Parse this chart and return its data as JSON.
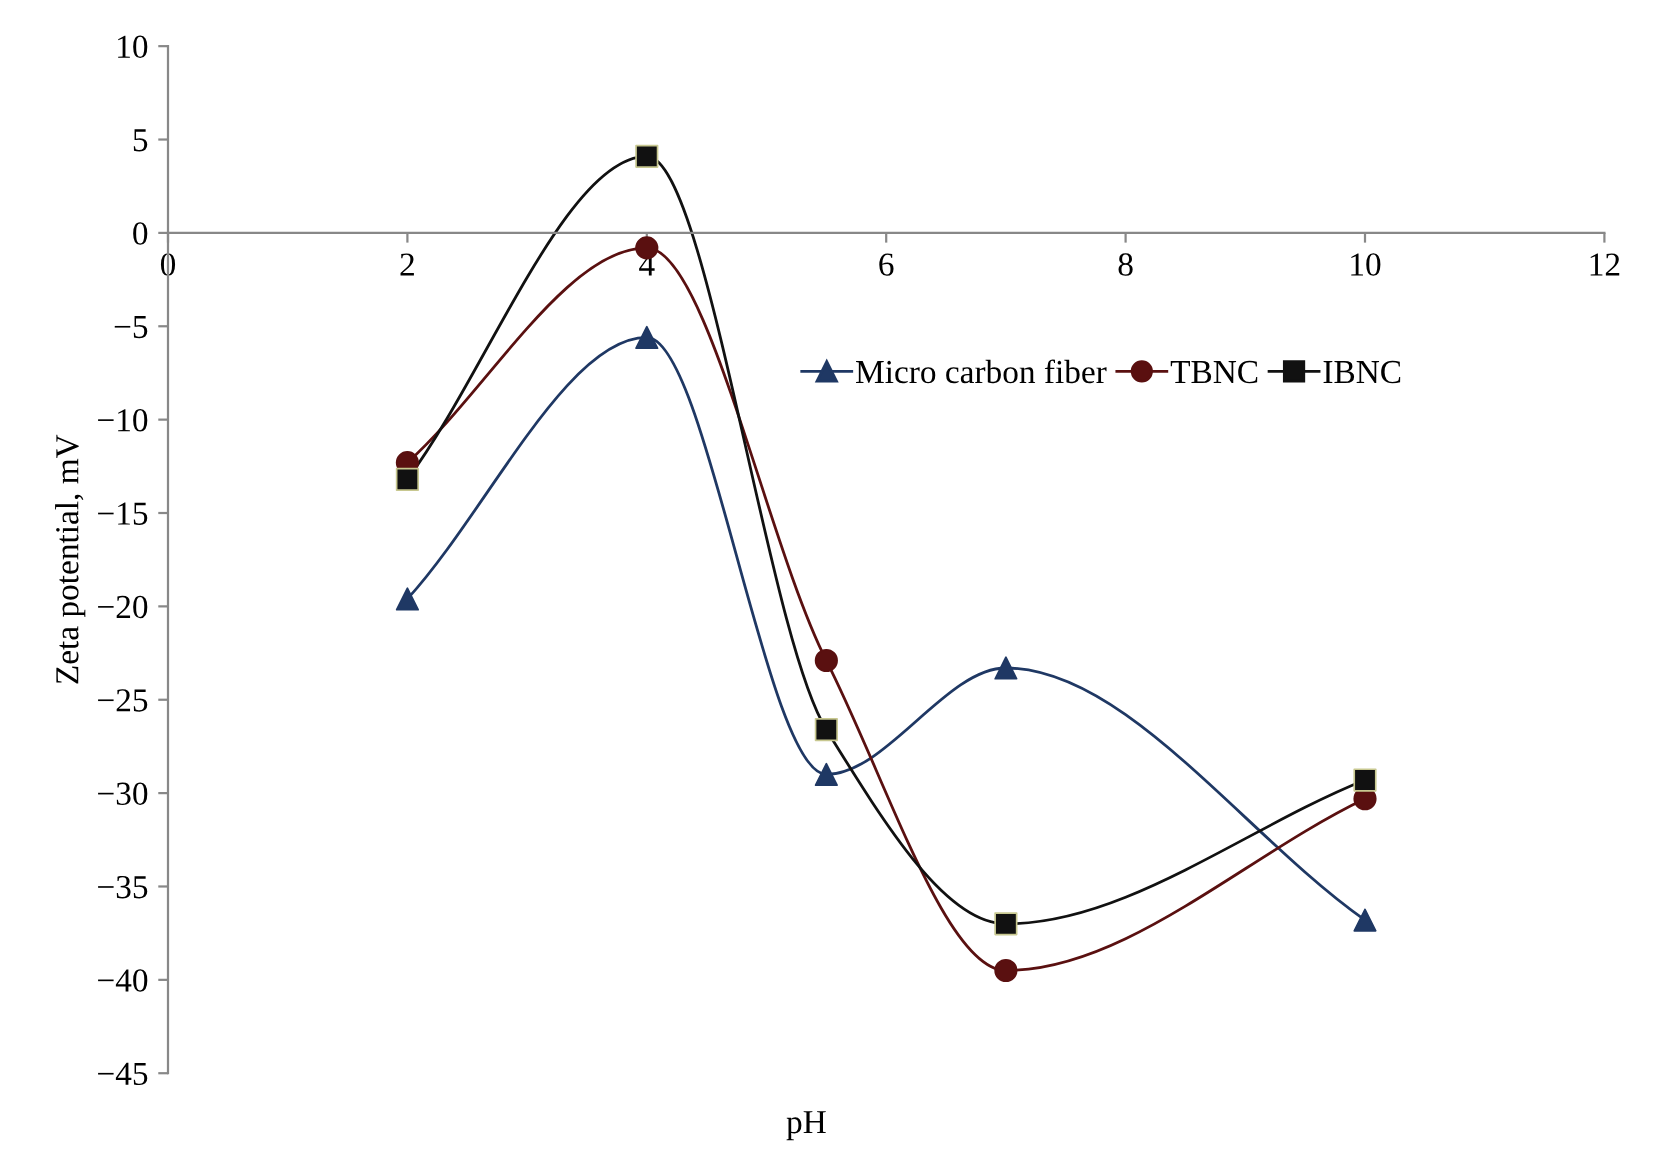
{
  "chart_data": {
    "type": "line",
    "xlabel": "pH",
    "ylabel": "Zeta potential, mV",
    "x": [
      2,
      4,
      5.5,
      7,
      10
    ],
    "series": [
      {
        "name": "Micro carbon fiber",
        "color": "#1f3864",
        "marker": "triangle",
        "values": [
          -19.6,
          -5.6,
          -29.0,
          -23.3,
          -36.8
        ]
      },
      {
        "name": "TBNC",
        "color": "#5a1010",
        "marker": "circle",
        "values": [
          -12.3,
          -0.8,
          -22.9,
          -39.5,
          -30.3
        ]
      },
      {
        "name": "IBNC",
        "color": "#111111",
        "marker": "square",
        "values": [
          -13.2,
          4.1,
          -26.6,
          -37.0,
          -29.3
        ]
      }
    ],
    "xlim": [
      0,
      12
    ],
    "xticks": [
      0,
      2,
      4,
      6,
      8,
      10,
      12
    ],
    "ylim": [
      -45,
      10
    ],
    "yticks": [
      -45,
      -40,
      -35,
      -30,
      -25,
      -20,
      -15,
      -10,
      -5,
      0,
      5,
      10
    ],
    "grid": false,
    "legend": "right",
    "line_style": "solid"
  }
}
